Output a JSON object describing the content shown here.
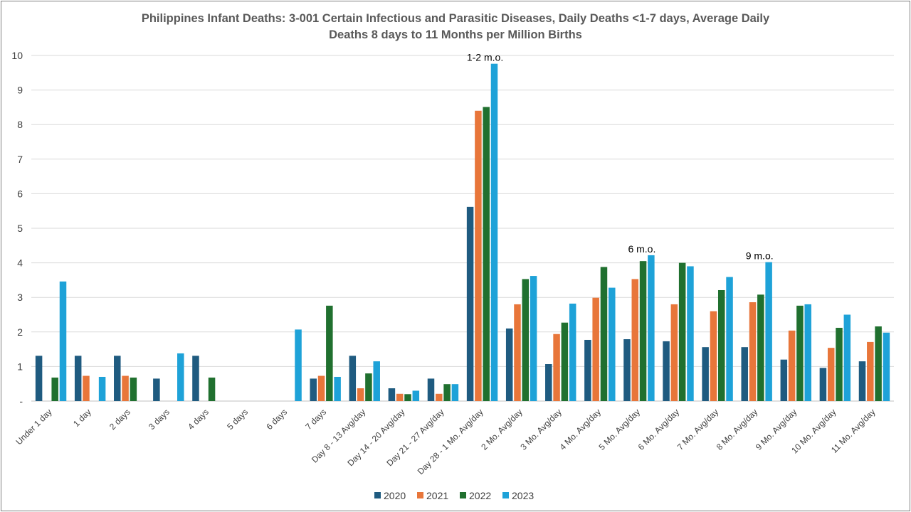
{
  "chart_data": {
    "type": "bar",
    "title_line1": "Philippines Infant Deaths: 3-001 Certain Infectious and Parasitic Diseases, Daily Deaths <1-7 days, Average Daily",
    "title_line2": "Deaths 8 days to 11 Months per Million Births",
    "xlabel": "",
    "ylabel": "",
    "ylim": [
      0,
      10
    ],
    "yticks": [
      "-",
      "1",
      "2",
      "3",
      "4",
      "5",
      "6",
      "7",
      "8",
      "9",
      "10"
    ],
    "grid": true,
    "legend_position": "bottom",
    "categories": [
      "Under 1 day",
      "1 day",
      "2 days",
      "3 days",
      "4 days",
      "5 days",
      "6 days",
      "7 days",
      "Day 8 - 13 Avg/day",
      "Day 14 - 20 Avg/day",
      "Day 21 - 27 Avg/day",
      "Day 28 - 1 Mo. Avg/day",
      "2 Mo. Avg/day",
      "3 Mo. Avg/day",
      "4 Mo. Avg/day",
      "5 Mo. Avg/day",
      "6 Mo. Avg/day",
      "7 Mo. Avg/day",
      "8 Mo. Avg/day",
      "9 Mo. Avg/day",
      "10 Mo. Avg/day",
      "11 Mo. Avg/day"
    ],
    "series": [
      {
        "name": "2020",
        "color": "#1f5b80",
        "values": [
          1.31,
          1.31,
          1.31,
          0.65,
          1.31,
          0,
          0,
          0.65,
          1.31,
          0.37,
          0.65,
          5.62,
          2.1,
          1.07,
          1.77,
          1.79,
          1.73,
          1.56,
          1.56,
          1.2,
          0.96,
          1.15
        ]
      },
      {
        "name": "2021",
        "color": "#e8763a",
        "values": [
          0,
          0.73,
          0.73,
          0,
          0,
          0,
          0,
          0.73,
          0.37,
          0.21,
          0.21,
          8.4,
          2.8,
          1.94,
          2.99,
          3.53,
          2.8,
          2.6,
          2.86,
          2.04,
          1.54,
          1.71
        ]
      },
      {
        "name": "2022",
        "color": "#20702f",
        "values": [
          0.68,
          0,
          0.68,
          0,
          0.68,
          0,
          0,
          2.76,
          0.8,
          0.2,
          0.49,
          8.51,
          3.53,
          2.27,
          3.88,
          4.05,
          4.0,
          3.21,
          3.08,
          2.76,
          2.12,
          2.16
        ]
      },
      {
        "name": "2023",
        "color": "#1ea2d8",
        "values": [
          3.46,
          0.7,
          0,
          1.38,
          0,
          0,
          2.07,
          0.7,
          1.15,
          0.3,
          0.49,
          9.76,
          3.62,
          2.82,
          3.28,
          4.22,
          3.9,
          3.59,
          4.02,
          2.8,
          2.5,
          1.98
        ]
      }
    ],
    "annotations": [
      {
        "text": "1-2 m.o.",
        "category_index": 11
      },
      {
        "text": "6 m.o.",
        "category_index": 15
      },
      {
        "text": "9 m.o.",
        "category_index": 18
      }
    ]
  }
}
